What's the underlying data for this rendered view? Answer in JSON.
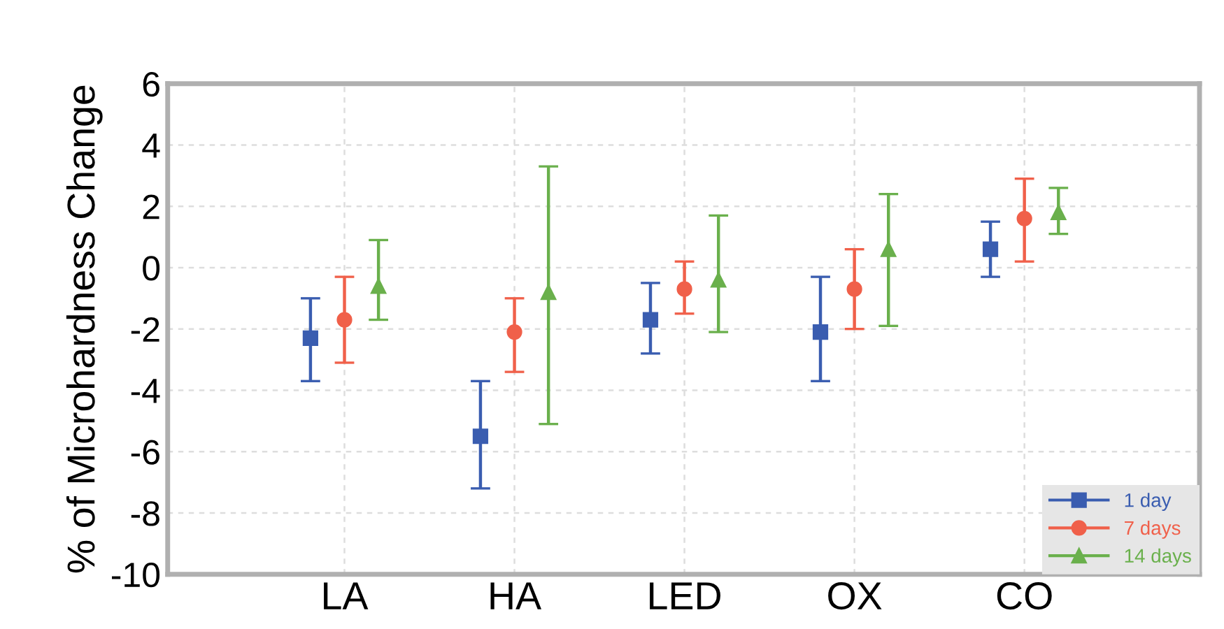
{
  "chart_data": {
    "type": "scatter",
    "ylabel": "% of Microhardness Change",
    "categories": [
      "LA",
      "HA",
      "LED",
      "OX",
      "CO"
    ],
    "ylim": [
      -10,
      6
    ],
    "yticks": [
      -10,
      -8,
      -6,
      -4,
      -2,
      0,
      2,
      4,
      6
    ],
    "grid": true,
    "legend": "bottom right",
    "series": [
      {
        "name": "1 day",
        "color": "#3a5db0",
        "marker": "square",
        "values": [
          -2.3,
          -5.5,
          -1.7,
          -2.1,
          0.6
        ],
        "errors": [
          [
            -3.7,
            -1.0
          ],
          [
            -7.2,
            -3.7
          ],
          [
            -2.8,
            -0.5
          ],
          [
            -3.7,
            -0.3
          ],
          [
            -0.3,
            1.5
          ]
        ]
      },
      {
        "name": "7 days",
        "color": "#f0604a",
        "marker": "circle",
        "values": [
          -1.7,
          -2.1,
          -0.7,
          -0.7,
          1.6
        ],
        "errors": [
          [
            -3.1,
            -0.3
          ],
          [
            -3.4,
            -1.0
          ],
          [
            -1.5,
            0.2
          ],
          [
            -2.0,
            0.6
          ],
          [
            0.2,
            2.9
          ]
        ]
      },
      {
        "name": "14 days",
        "color": "#6ab04c",
        "marker": "triangle",
        "values": [
          -0.6,
          -0.8,
          -0.4,
          0.6,
          1.8
        ],
        "errors": [
          [
            -1.7,
            0.9
          ],
          [
            -5.1,
            3.3
          ],
          [
            -2.1,
            1.7
          ],
          [
            -1.9,
            2.4
          ],
          [
            1.1,
            2.6
          ]
        ]
      }
    ]
  }
}
